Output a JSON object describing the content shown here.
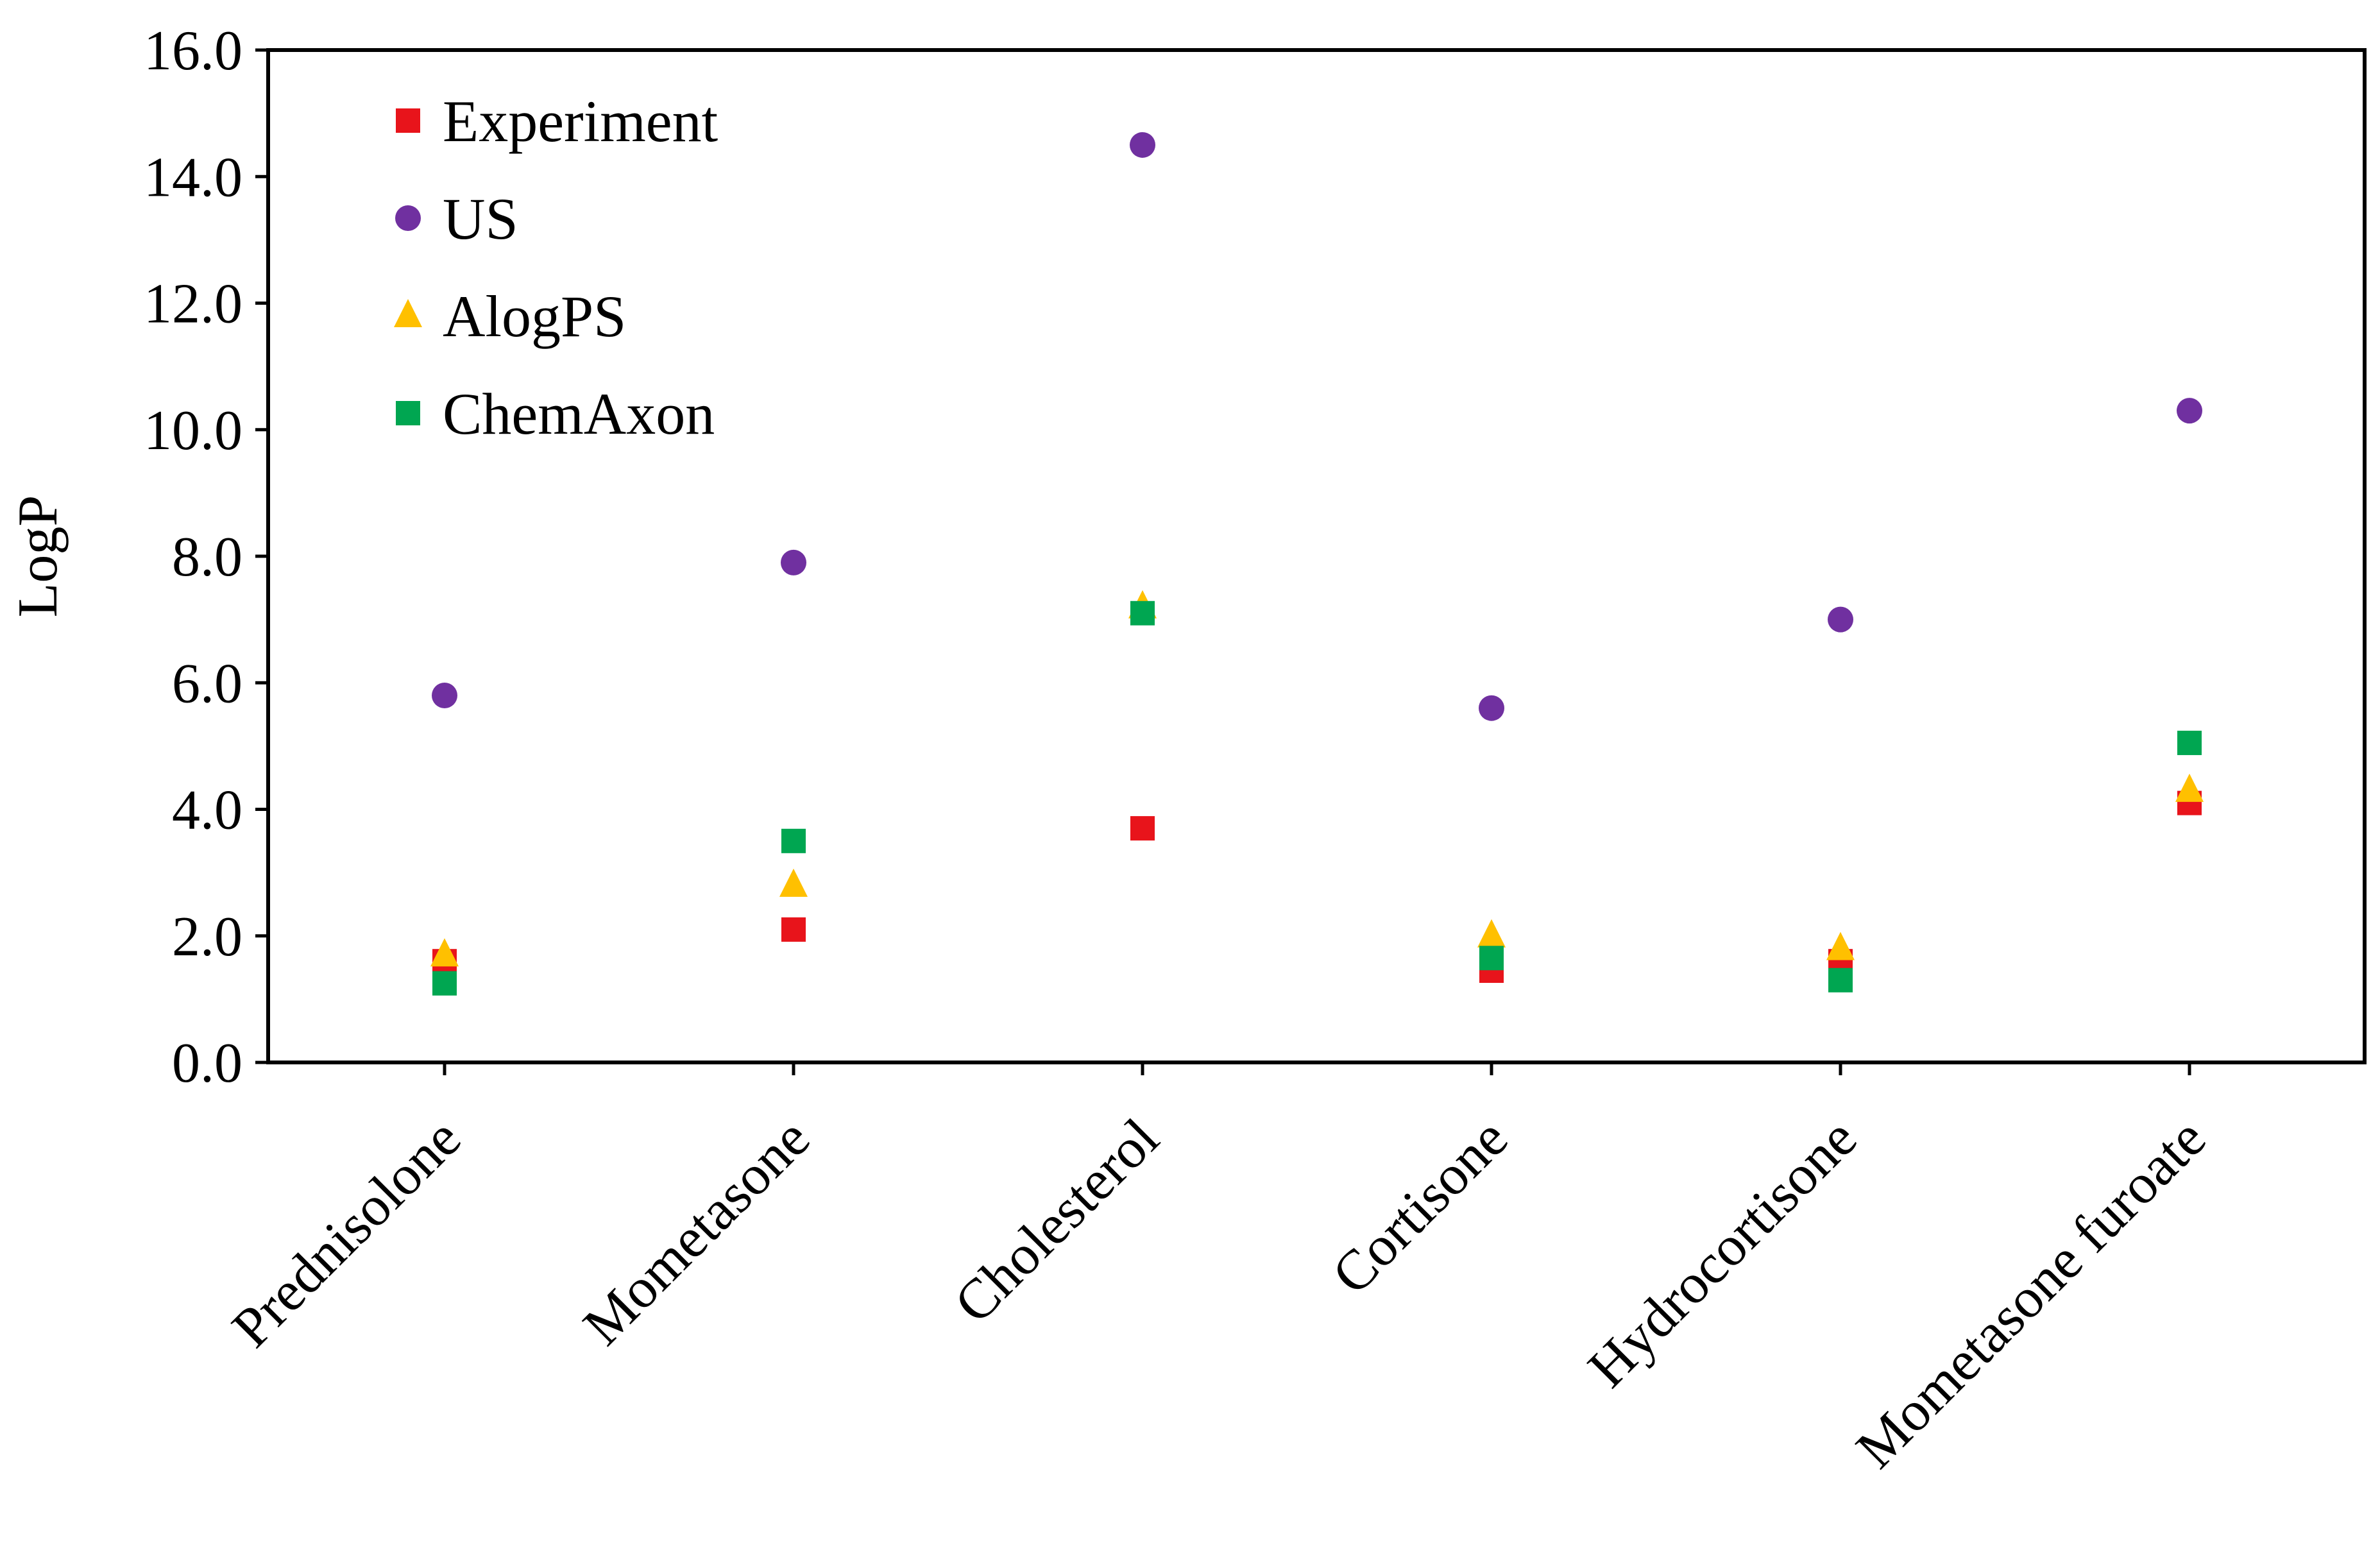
{
  "chart_data": {
    "type": "scatter",
    "title": "",
    "xlabel": "",
    "ylabel": "LogP",
    "ylim": [
      0,
      16
    ],
    "yticks": [
      "0.0",
      "2.0",
      "4.0",
      "6.0",
      "8.0",
      "10.0",
      "12.0",
      "14.0",
      "16.0"
    ],
    "grid": false,
    "legend_position": "top-left",
    "categories": [
      "Prednisolone",
      "Mometasone",
      "Cholesterol",
      "Cortisone",
      "Hydrocortisone",
      "Mometasone furoate"
    ],
    "series": [
      {
        "name": "Experiment",
        "marker": "square",
        "color": "#e8141b",
        "values": [
          1.6,
          2.1,
          3.7,
          1.45,
          1.6,
          4.1
        ]
      },
      {
        "name": "US",
        "marker": "circle",
        "color": "#7030a0",
        "values": [
          5.8,
          7.9,
          14.5,
          5.6,
          7.0,
          10.3
        ]
      },
      {
        "name": "AlogPS",
        "marker": "triangle",
        "color": "#ffc000",
        "values": [
          1.7,
          2.8,
          7.2,
          2.0,
          1.8,
          4.3
        ]
      },
      {
        "name": "ChemAxon",
        "marker": "square",
        "color": "#00a651",
        "values": [
          1.25,
          3.5,
          7.1,
          1.65,
          1.3,
          5.05
        ]
      }
    ]
  }
}
